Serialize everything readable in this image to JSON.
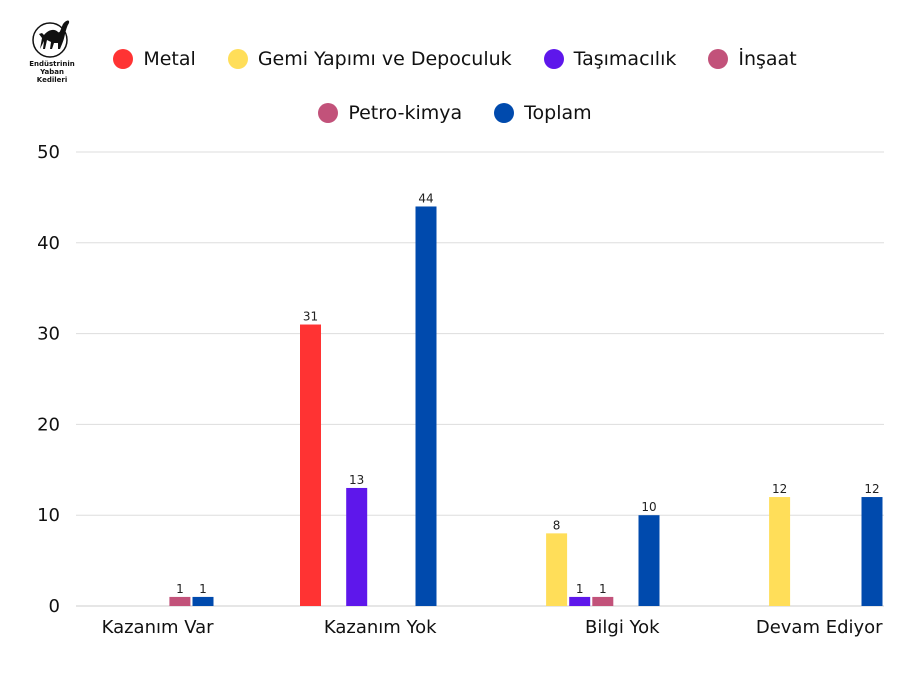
{
  "logo": {
    "lines": [
      "Endüstrinin",
      "Yaban",
      "Kedileri"
    ]
  },
  "chart_data": {
    "type": "bar",
    "title": "",
    "xlabel": "",
    "ylabel": "",
    "ylim": [
      0,
      50
    ],
    "yticks": [
      0,
      10,
      20,
      30,
      40,
      50
    ],
    "grid": true,
    "legend_position": "top",
    "categories": [
      "Kazanım Var",
      "Kazanım Yok",
      "Bilgi Yok",
      "Devam Ediyor"
    ],
    "series": [
      {
        "name": "Metal",
        "color": "#FF3333",
        "values": [
          null,
          31,
          null,
          null
        ]
      },
      {
        "name": "Gemi Yapımı ve Depoculuk",
        "color": "#FFDE59",
        "values": [
          null,
          null,
          8,
          12
        ]
      },
      {
        "name": "Taşımacılık",
        "color": "#5E17EB",
        "values": [
          null,
          13,
          1,
          null
        ]
      },
      {
        "name": "İnşaat",
        "color": "#C2527A",
        "values": [
          null,
          null,
          1,
          null
        ]
      },
      {
        "name": "Petro-kimya",
        "color": "#C2527A",
        "values": [
          1,
          null,
          null,
          null
        ]
      },
      {
        "name": "Toplam",
        "color": "#004AAD",
        "values": [
          1,
          44,
          10,
          12
        ]
      }
    ]
  },
  "legend": {
    "row1": [
      {
        "label": "Metal",
        "color": "#FF3333"
      },
      {
        "label": "Gemi Yapımı ve Depoculuk",
        "color": "#FFDE59"
      },
      {
        "label": "Taşımacılık",
        "color": "#5E17EB"
      },
      {
        "label": "İnşaat",
        "color": "#C2527A"
      }
    ],
    "row2": [
      {
        "label": "Petro-kimya",
        "color": "#C2527A"
      },
      {
        "label": "Toplam",
        "color": "#004AAD"
      }
    ]
  }
}
